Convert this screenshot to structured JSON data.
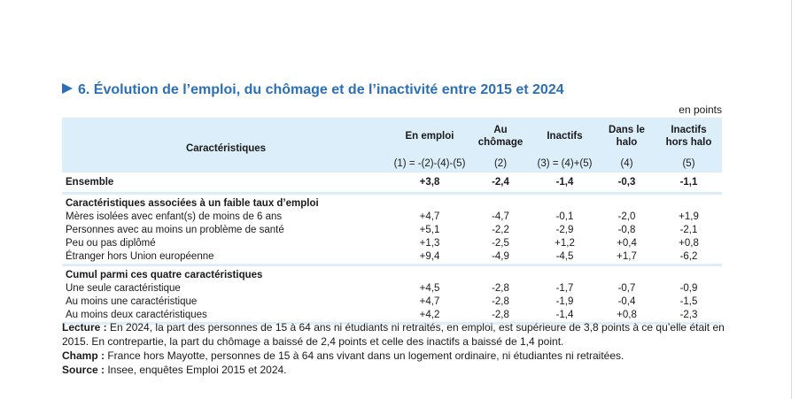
{
  "title": "6. Évolution de l’emploi, du chômage et de l’inactivité entre 2015 et 2024",
  "unit": "en points",
  "header": {
    "caracteristiques": "Caractéristiques",
    "columns": [
      {
        "label": "En emploi",
        "formula": "(1) = -(2)-(4)-(5)"
      },
      {
        "label": "Au chômage",
        "formula": "(2)"
      },
      {
        "label": "Inactifs",
        "formula": "(3) = (4)+(5)"
      },
      {
        "label": "Dans le halo",
        "formula": "(4)"
      },
      {
        "label": "Inactifs hors halo",
        "formula": "(5)"
      }
    ]
  },
  "ensemble": {
    "label": "Ensemble",
    "values": [
      "+3,8",
      "-2,4",
      "-1,4",
      "-0,3",
      "-1,1"
    ]
  },
  "sections": [
    {
      "title": "Caractéristiques associées à un faible taux d’emploi",
      "rows": [
        {
          "label": "Mères isolées avec enfant(s) de moins de 6 ans",
          "values": [
            "+4,7",
            "-4,7",
            "-0,1",
            "-2,0",
            "+1,9"
          ]
        },
        {
          "label": "Personnes avec au moins un problème de santé",
          "values": [
            "+5,1",
            "-2,2",
            "-2,9",
            "-0,8",
            "-2,1"
          ]
        },
        {
          "label": "Peu ou pas diplômé",
          "values": [
            "+1,3",
            "-2,5",
            "+1,2",
            "+0,4",
            "+0,8"
          ]
        },
        {
          "label": "Étranger hors Union européenne",
          "values": [
            "+9,4",
            "-4,9",
            "-4,5",
            "+1,7",
            "-6,2"
          ]
        }
      ]
    },
    {
      "title": "Cumul parmi ces quatre caractéristiques",
      "rows": [
        {
          "label": "Une seule caractéristique",
          "values": [
            "+4,5",
            "-2,8",
            "-1,7",
            "-0,7",
            "-0,9"
          ]
        },
        {
          "label": "Au moins une caractéristique",
          "values": [
            "+4,7",
            "-2,8",
            "-1,9",
            "-0,4",
            "-1,5"
          ]
        },
        {
          "label": "Au moins deux caractéristiques",
          "values": [
            "+4,2",
            "-2,8",
            "-1,4",
            "+0,8",
            "-2,3"
          ]
        }
      ]
    }
  ],
  "notes": {
    "lecture_label": "Lecture :",
    "lecture_text": " En 2024, la part des personnes de 15 à 64 ans ni étudiants ni retraités, en emploi, est supérieure de 3,8 points à ce qu’elle était en 2015. En contrepartie, la part du chômage a baissé de 2,4 points et celle des inactifs a baissé de 1,4 point.",
    "champ_label": "Champ :",
    "champ_text": " France hors Mayotte, personnes de 15 à 64 ans vivant dans un logement ordinaire, ni étudiantes ni retraitées.",
    "source_label": "Source :",
    "source_text": " Insee, enquêtes Emploi 2015 et 2024."
  },
  "colors": {
    "accent": "#2d6fb7",
    "header_bg": "#dceefa"
  }
}
